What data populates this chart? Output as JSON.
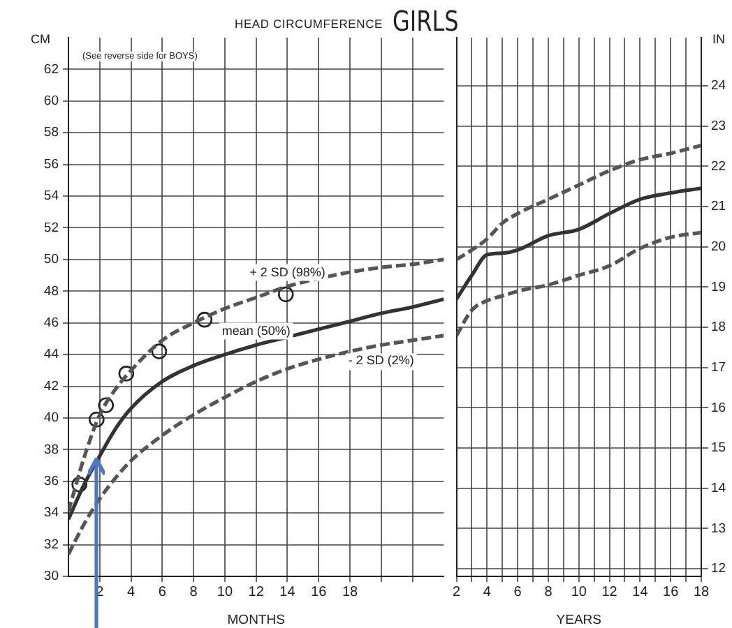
{
  "chart_data": [
    {
      "type": "line",
      "title": "HEAD CIRCUMFERENCE",
      "subtitle": "GIRLS",
      "ylabel": "CM",
      "xlabel": "MONTHS",
      "annotations": [
        "(See reverse side for BOYS)"
      ],
      "xlim": [
        0,
        24
      ],
      "xticks": [
        2,
        4,
        6,
        8,
        10,
        12,
        14,
        16,
        18,
        {
          "value": 20,
          "label": null
        },
        {
          "value": 22,
          "label": null
        }
      ],
      "ylim": [
        30,
        64
      ],
      "yticks": [
        30,
        32,
        34,
        36,
        38,
        40,
        42,
        44,
        46,
        48,
        50,
        52,
        54,
        56,
        58,
        60,
        62
      ],
      "grid": true,
      "legend": false,
      "series": [
        {
          "name": "+ 2 SD (98%)",
          "line_style": "dashed",
          "color": "#555555",
          "x": [
            0,
            1,
            2,
            3,
            4,
            6,
            8,
            10,
            12,
            14,
            16,
            18,
            20,
            22,
            24
          ],
          "values": [
            34.1,
            37.5,
            40.2,
            41.8,
            43.0,
            44.9,
            46.0,
            46.9,
            47.6,
            48.3,
            48.8,
            49.2,
            49.5,
            49.7,
            50.0
          ]
        },
        {
          "name": "mean (50%)",
          "line_style": "solid",
          "color": "#333333",
          "x": [
            0,
            1,
            2,
            3,
            4,
            6,
            8,
            10,
            12,
            14,
            16,
            18,
            20,
            22,
            24
          ],
          "values": [
            33.6,
            35.8,
            37.6,
            39.3,
            40.6,
            42.3,
            43.3,
            44.0,
            44.6,
            45.1,
            45.6,
            46.1,
            46.6,
            47.0,
            47.5
          ]
        },
        {
          "name": "- 2 SD (2%)",
          "line_style": "dashed",
          "color": "#555555",
          "x": [
            0,
            1,
            2,
            3,
            4,
            6,
            8,
            10,
            12,
            14,
            16,
            18,
            20,
            22,
            24
          ],
          "values": [
            31.4,
            33.3,
            34.9,
            36.2,
            37.3,
            38.9,
            40.2,
            41.3,
            42.3,
            43.1,
            43.7,
            44.2,
            44.6,
            44.9,
            45.2
          ]
        },
        {
          "type": "scatter",
          "marker": "circle",
          "color": "#222222",
          "x": [
            0.7,
            1.8,
            2.4,
            3.7,
            5.8,
            8.7,
            13.9
          ],
          "values": [
            35.8,
            39.9,
            40.8,
            42.8,
            44.2,
            46.2,
            47.8
          ]
        }
      ]
    },
    {
      "type": "line",
      "xlabel": "YEARS",
      "y2label": "IN",
      "xlim": [
        2,
        18
      ],
      "xticks": [
        2,
        {
          "value": 3,
          "label": null
        },
        4,
        {
          "value": 5,
          "label": null
        },
        6,
        {
          "value": 7,
          "label": null
        },
        8,
        {
          "value": 9,
          "label": null
        },
        10,
        {
          "value": 11,
          "label": null
        },
        12,
        {
          "value": 13,
          "label": null
        },
        14,
        {
          "value": 15,
          "label": null
        },
        16,
        {
          "value": 17,
          "label": null
        },
        18
      ],
      "ylim": [
        30,
        64
      ],
      "y2lim": [
        11.81,
        25.2
      ],
      "y2ticks": [
        12,
        13,
        14,
        15,
        16,
        17,
        18,
        19,
        20,
        21,
        22,
        23,
        24
      ],
      "tick_labels": [
        "x",
        "y2"
      ],
      "grid": true,
      "legend": false,
      "series": [
        {
          "line_style": "dashed",
          "color": "#555555",
          "x": [
            2,
            3,
            4,
            5,
            6,
            8,
            10,
            12,
            14,
            16,
            18
          ],
          "values": [
            50.0,
            50.6,
            51.3,
            52.3,
            52.9,
            53.8,
            54.7,
            55.6,
            56.3,
            56.7,
            57.2
          ]
        },
        {
          "line_style": "solid",
          "color": "#333333",
          "x": [
            2,
            3,
            4,
            5,
            6,
            8,
            10,
            12,
            14,
            16,
            18
          ],
          "values": [
            47.5,
            49.0,
            50.3,
            50.4,
            50.6,
            51.5,
            51.9,
            52.9,
            53.8,
            54.2,
            54.5
          ]
        },
        {
          "line_style": "dashed",
          "color": "#555555",
          "x": [
            2,
            3,
            4,
            5,
            6,
            8,
            10,
            12,
            14,
            16,
            18
          ],
          "values": [
            45.2,
            46.8,
            47.4,
            47.7,
            48.0,
            48.4,
            49.0,
            49.6,
            50.7,
            51.4,
            51.7
          ]
        }
      ]
    }
  ]
}
